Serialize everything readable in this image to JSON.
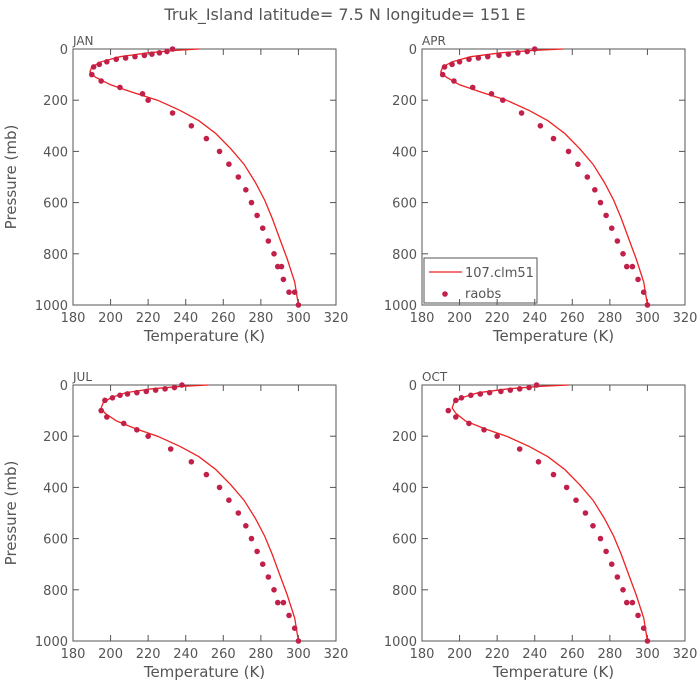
{
  "figure": {
    "title": "Truk_Island  latitude= 7.5 N longitude= 151 E"
  },
  "colors": {
    "model": "#ee2222",
    "obs": "#c0204a",
    "axis": "#555555"
  },
  "chart_data": [
    {
      "type": "line",
      "panel_label": "JAN",
      "xlabel": "Temperature (K)",
      "ylabel": "Pressure (mb)",
      "xlim": [
        180,
        320
      ],
      "ylim": [
        1000,
        0
      ],
      "x_ticks": [
        180,
        200,
        220,
        240,
        260,
        280,
        300,
        320
      ],
      "y_ticks": [
        0,
        200,
        400,
        600,
        800,
        1000
      ],
      "series": [
        {
          "name": "107.clm51",
          "kind": "line",
          "x": [
            247,
            235,
            220,
            205,
            195,
            190,
            189,
            192,
            200,
            212,
            225,
            237,
            247,
            256,
            264,
            271,
            277,
            282,
            286,
            290,
            294,
            298,
            300
          ],
          "y": [
            0,
            5,
            15,
            30,
            50,
            70,
            90,
            110,
            140,
            170,
            200,
            240,
            280,
            330,
            390,
            450,
            520,
            590,
            660,
            740,
            820,
            910,
            1000
          ]
        },
        {
          "name": "raobs",
          "kind": "scatter",
          "x": [
            233,
            230,
            226,
            222,
            218,
            213,
            208,
            203,
            198,
            194,
            191,
            190,
            195,
            205,
            217,
            220,
            233,
            243,
            251,
            258,
            263,
            268,
            272,
            275,
            278,
            281,
            284,
            287,
            289,
            291,
            292,
            295,
            298,
            300
          ],
          "y": [
            0,
            10,
            15,
            20,
            25,
            30,
            35,
            40,
            50,
            60,
            70,
            100,
            125,
            150,
            175,
            200,
            250,
            300,
            350,
            400,
            450,
            500,
            550,
            600,
            650,
            700,
            750,
            800,
            850,
            850,
            900,
            950,
            950,
            1000
          ]
        }
      ]
    },
    {
      "type": "line",
      "panel_label": "APR",
      "xlabel": "Temperature (K)",
      "ylabel": "",
      "xlim": [
        180,
        320
      ],
      "ylim": [
        1000,
        0
      ],
      "x_ticks": [
        180,
        200,
        220,
        240,
        260,
        280,
        300,
        320
      ],
      "y_ticks": [
        0,
        200,
        400,
        600,
        800,
        1000
      ],
      "legend": {
        "placement": "bottom-left"
      },
      "series": [
        {
          "name": "107.clm51",
          "kind": "line",
          "x": [
            255,
            240,
            222,
            206,
            196,
            191,
            190,
            193,
            200,
            212,
            225,
            237,
            247,
            256,
            264,
            271,
            277,
            282,
            286,
            290,
            294,
            298,
            300
          ],
          "y": [
            0,
            5,
            15,
            30,
            50,
            70,
            90,
            110,
            140,
            170,
            200,
            240,
            280,
            330,
            390,
            450,
            520,
            590,
            660,
            740,
            820,
            910,
            1000
          ]
        },
        {
          "name": "raobs",
          "kind": "scatter",
          "x": [
            240,
            236,
            231,
            226,
            221,
            215,
            210,
            205,
            200,
            196,
            192,
            191,
            197,
            207,
            217,
            223,
            233,
            243,
            250,
            258,
            263,
            268,
            272,
            275,
            278,
            281,
            284,
            287,
            289,
            292,
            295,
            298,
            300
          ],
          "y": [
            0,
            10,
            15,
            20,
            25,
            30,
            35,
            40,
            50,
            60,
            70,
            100,
            125,
            150,
            175,
            200,
            250,
            300,
            350,
            400,
            450,
            500,
            550,
            600,
            650,
            700,
            750,
            800,
            850,
            850,
            900,
            950,
            1000
          ]
        }
      ]
    },
    {
      "type": "line",
      "panel_label": "JUL",
      "xlabel": "Temperature (K)",
      "ylabel": "Pressure (mb)",
      "xlim": [
        180,
        320
      ],
      "ylim": [
        1000,
        0
      ],
      "x_ticks": [
        180,
        200,
        220,
        240,
        260,
        280,
        300,
        320
      ],
      "y_ticks": [
        0,
        200,
        400,
        600,
        800,
        1000
      ],
      "series": [
        {
          "name": "107.clm51",
          "kind": "line",
          "x": [
            252,
            238,
            222,
            208,
            200,
            196,
            195,
            197,
            203,
            213,
            225,
            237,
            247,
            256,
            264,
            271,
            277,
            282,
            286,
            290,
            294,
            298,
            300
          ],
          "y": [
            0,
            5,
            15,
            30,
            50,
            70,
            90,
            110,
            140,
            170,
            200,
            240,
            280,
            330,
            390,
            450,
            520,
            590,
            660,
            740,
            820,
            910,
            1000
          ]
        },
        {
          "name": "raobs",
          "kind": "scatter",
          "x": [
            238,
            234,
            229,
            224,
            219,
            214,
            209,
            205,
            201,
            197,
            195,
            198,
            207,
            214,
            220,
            232,
            243,
            251,
            258,
            263,
            268,
            272,
            275,
            278,
            281,
            284,
            287,
            289,
            292,
            295,
            298,
            300
          ],
          "y": [
            0,
            10,
            15,
            20,
            25,
            30,
            35,
            40,
            50,
            60,
            100,
            125,
            150,
            175,
            200,
            250,
            300,
            350,
            400,
            450,
            500,
            550,
            600,
            650,
            700,
            750,
            800,
            850,
            850,
            900,
            950,
            1000
          ]
        }
      ]
    },
    {
      "type": "line",
      "panel_label": "OCT",
      "xlabel": "Temperature (K)",
      "ylabel": "",
      "xlim": [
        180,
        320
      ],
      "ylim": [
        1000,
        0
      ],
      "x_ticks": [
        180,
        200,
        220,
        240,
        260,
        280,
        300,
        320
      ],
      "y_ticks": [
        0,
        200,
        400,
        600,
        800,
        1000
      ],
      "series": [
        {
          "name": "107.clm51",
          "kind": "line",
          "x": [
            258,
            243,
            226,
            210,
            201,
            197,
            196,
            198,
            203,
            213,
            225,
            237,
            247,
            256,
            264,
            271,
            277,
            282,
            286,
            290,
            294,
            298,
            300
          ],
          "y": [
            0,
            5,
            15,
            30,
            50,
            70,
            90,
            110,
            140,
            170,
            200,
            240,
            280,
            330,
            390,
            450,
            520,
            590,
            660,
            740,
            820,
            910,
            1000
          ]
        },
        {
          "name": "raobs",
          "kind": "scatter",
          "x": [
            241,
            237,
            232,
            227,
            222,
            216,
            211,
            206,
            201,
            198,
            194,
            198,
            205,
            213,
            220,
            232,
            242,
            250,
            257,
            262,
            267,
            271,
            275,
            278,
            281,
            284,
            287,
            289,
            292,
            295,
            298,
            300
          ],
          "y": [
            0,
            10,
            15,
            20,
            25,
            30,
            35,
            40,
            50,
            60,
            100,
            125,
            150,
            175,
            200,
            250,
            300,
            350,
            400,
            450,
            500,
            550,
            600,
            650,
            700,
            750,
            800,
            850,
            850,
            900,
            950,
            1000
          ]
        }
      ]
    }
  ]
}
